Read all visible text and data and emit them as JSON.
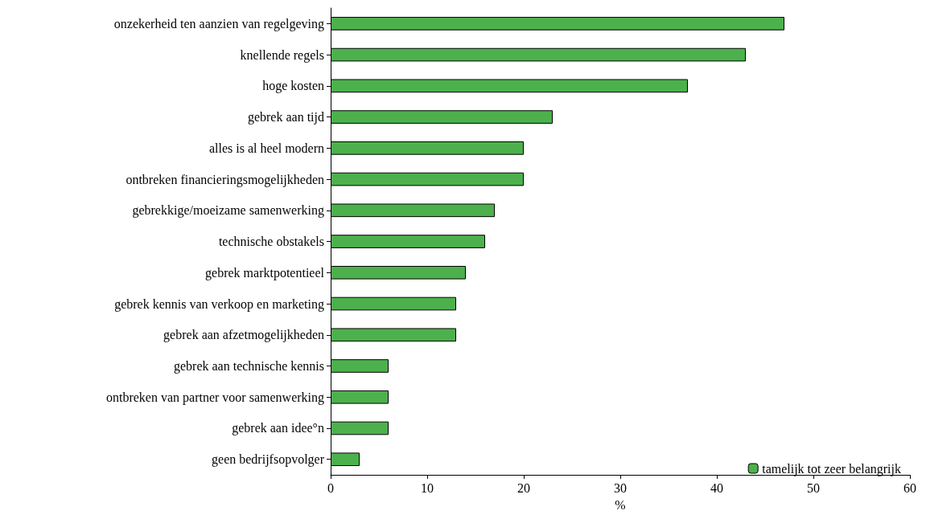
{
  "chart_data": {
    "type": "bar",
    "orientation": "horizontal",
    "xlabel": "%",
    "categories": [
      "onzekerheid ten aanzien van regelgeving",
      "knellende regels",
      "hoge kosten",
      "gebrek aan tijd",
      "alles is al heel modern",
      "ontbreken financieringsmogelijkheden",
      "gebrekkige/moeizame samenwerking",
      "technische obstakels",
      "gebrek marktpotentieel",
      "gebrek kennis van verkoop en marketing",
      "gebrek aan afzetmogelijkheden",
      "gebrek aan technische kennis",
      "ontbreken van partner voor samenwerking",
      "gebrek aan idee°n",
      "geen bedrijfsopvolger"
    ],
    "series": [
      {
        "name": "tamelijk tot zeer belangrijk",
        "color": "#4cb14c",
        "values": [
          47,
          43,
          37,
          23,
          20,
          20,
          17,
          16,
          14,
          13,
          13,
          6,
          6,
          6,
          3
        ]
      }
    ],
    "xlim": [
      0,
      60
    ],
    "xticks": [
      0,
      10,
      20,
      30,
      40,
      50,
      60
    ],
    "grid": false,
    "legend": "bottom right"
  }
}
